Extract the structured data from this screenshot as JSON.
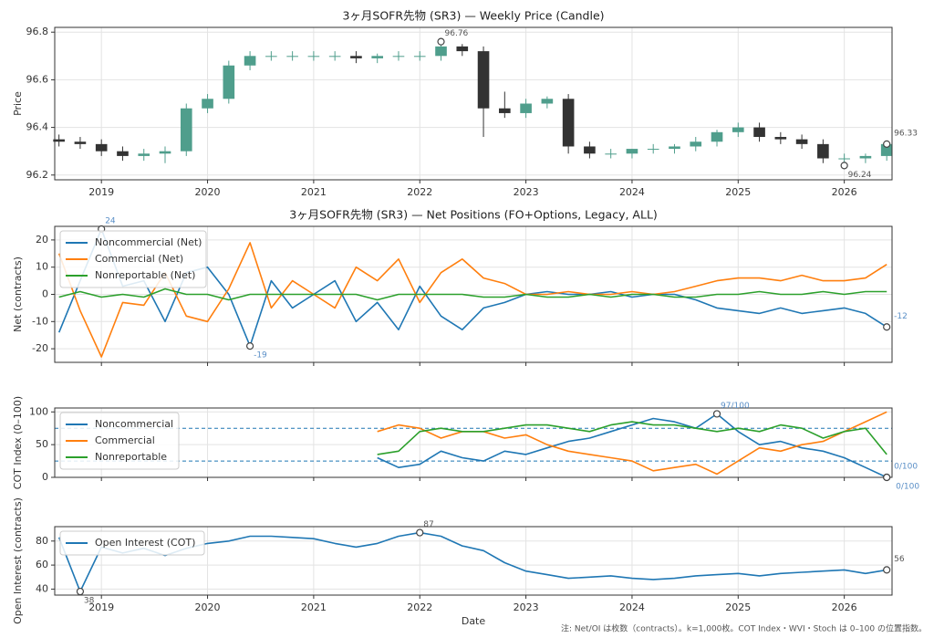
{
  "chart_data": [
    {
      "type": "candlestick",
      "title": "3ヶ月SOFR先物 (SR3) — Weekly Price (Candle)",
      "y_label": "Price",
      "x": [
        2018.6,
        2018.8,
        2019.0,
        2019.2,
        2019.4,
        2019.6,
        2019.8,
        2020.0,
        2020.2,
        2020.4,
        2020.6,
        2020.8,
        2021.0,
        2021.2,
        2021.4,
        2021.6,
        2021.8,
        2022.0,
        2022.2,
        2022.4,
        2022.6,
        2022.8,
        2023.0,
        2023.2,
        2023.4,
        2023.6,
        2023.8,
        2024.0,
        2024.2,
        2024.4,
        2024.6,
        2024.8,
        2025.0,
        2025.2,
        2025.4,
        2025.6,
        2025.8,
        2026.0,
        2026.2,
        2026.4
      ],
      "open": [
        96.35,
        96.34,
        96.33,
        96.3,
        96.28,
        96.29,
        96.3,
        96.48,
        96.52,
        96.66,
        96.7,
        96.7,
        96.7,
        96.7,
        96.7,
        96.69,
        96.7,
        96.7,
        96.7,
        96.74,
        96.72,
        96.48,
        96.46,
        96.5,
        96.52,
        96.32,
        96.29,
        96.29,
        96.31,
        96.31,
        96.32,
        96.34,
        96.38,
        96.4,
        96.36,
        96.35,
        96.33,
        96.27,
        96.27,
        96.28
      ],
      "high": [
        96.37,
        96.36,
        96.35,
        96.32,
        96.31,
        96.32,
        96.5,
        96.54,
        96.68,
        96.72,
        96.72,
        96.72,
        96.72,
        96.72,
        96.72,
        96.71,
        96.72,
        96.72,
        96.76,
        96.75,
        96.74,
        96.55,
        96.52,
        96.53,
        96.54,
        96.34,
        96.31,
        96.31,
        96.33,
        96.33,
        96.36,
        96.39,
        96.42,
        96.42,
        96.38,
        96.37,
        96.35,
        96.29,
        96.29,
        96.34
      ],
      "low": [
        96.32,
        96.31,
        96.28,
        96.26,
        96.26,
        96.25,
        96.28,
        96.46,
        96.5,
        96.64,
        96.68,
        96.68,
        96.68,
        96.68,
        96.67,
        96.67,
        96.68,
        96.68,
        96.68,
        96.7,
        96.36,
        96.44,
        96.44,
        96.48,
        96.29,
        96.27,
        96.27,
        96.27,
        96.29,
        96.29,
        96.3,
        96.32,
        96.36,
        96.34,
        96.33,
        96.31,
        96.25,
        96.24,
        96.25,
        96.26
      ],
      "close": [
        96.34,
        96.33,
        96.3,
        96.28,
        96.29,
        96.3,
        96.48,
        96.52,
        96.66,
        96.7,
        96.7,
        96.7,
        96.7,
        96.7,
        96.69,
        96.7,
        96.7,
        96.7,
        96.74,
        96.72,
        96.48,
        96.46,
        96.5,
        96.52,
        96.32,
        96.29,
        96.29,
        96.31,
        96.31,
        96.32,
        96.34,
        96.38,
        96.4,
        96.36,
        96.35,
        96.33,
        96.27,
        96.27,
        96.28,
        96.33
      ],
      "up_color": "#4f9e8c",
      "down_color": "#333333",
      "annotation_color": "#555555",
      "annotations": [
        {
          "x": 2022.2,
          "value": 96.76,
          "label": "96.76"
        },
        {
          "x": 2026.0,
          "value": 96.24,
          "label": "96.24"
        },
        {
          "x": 2026.4,
          "value": 96.33,
          "label": "96.33"
        }
      ],
      "xlim": [
        2018.56,
        2026.45
      ],
      "xticks": [
        2019,
        2020,
        2021,
        2022,
        2023,
        2024,
        2025,
        2026
      ],
      "show_xtick_labels": true,
      "ylim": [
        96.18,
        96.82
      ],
      "yticks": [
        96.2,
        96.4,
        96.6,
        96.8
      ],
      "grid": true
    },
    {
      "type": "line",
      "title": "3ヶ月SOFR先物 (SR3) — Net Positions (FO+Options, Legacy, ALL)",
      "y_label": "Net (contracts)",
      "x": [
        2018.6,
        2018.8,
        2019.0,
        2019.2,
        2019.4,
        2019.6,
        2019.8,
        2020.0,
        2020.2,
        2020.4,
        2020.6,
        2020.8,
        2021.0,
        2021.2,
        2021.4,
        2021.6,
        2021.8,
        2022.0,
        2022.2,
        2022.4,
        2022.6,
        2022.8,
        2023.0,
        2023.2,
        2023.4,
        2023.6,
        2023.8,
        2024.0,
        2024.2,
        2024.4,
        2024.6,
        2024.8,
        2025.0,
        2025.2,
        2025.4,
        2025.6,
        2025.8,
        2026.0,
        2026.2,
        2026.4
      ],
      "series": [
        {
          "name": "Noncommercial (Net)",
          "color": "#1f77b4",
          "values": [
            -14,
            5,
            24,
            3,
            5,
            -10,
            8,
            10,
            0,
            -19,
            5,
            -5,
            0,
            5,
            -10,
            -3,
            -13,
            3,
            -8,
            -13,
            -5,
            -3,
            0,
            1,
            0,
            0,
            1,
            -1,
            0,
            0,
            -2,
            -5,
            -6,
            -7,
            -5,
            -7,
            -6,
            -5,
            -7,
            -12
          ]
        },
        {
          "name": "Commercial (Net)",
          "color": "#ff7f0e",
          "values": [
            15,
            -6,
            -23,
            -3,
            -4,
            8,
            -8,
            -10,
            2,
            19,
            -5,
            5,
            0,
            -5,
            10,
            5,
            13,
            -3,
            8,
            13,
            6,
            4,
            0,
            0,
            1,
            0,
            0,
            1,
            0,
            1,
            3,
            5,
            6,
            6,
            5,
            7,
            5,
            5,
            6,
            11
          ]
        },
        {
          "name": "Nonreportable (Net)",
          "color": "#2ca02c",
          "values": [
            -1,
            1,
            -1,
            0,
            -1,
            2,
            0,
            0,
            -2,
            0,
            0,
            0,
            0,
            0,
            0,
            -2,
            0,
            0,
            0,
            0,
            -1,
            -1,
            0,
            -1,
            -1,
            0,
            -1,
            0,
            0,
            -1,
            -1,
            0,
            0,
            1,
            0,
            0,
            1,
            0,
            1,
            1
          ]
        }
      ],
      "annotation_color": "#5a8fc7",
      "annotations": [
        {
          "x": 2019.0,
          "value": 24,
          "label": "24"
        },
        {
          "x": 2020.4,
          "value": -19,
          "label": "-19"
        },
        {
          "x": 2026.4,
          "value": -12,
          "label": "-12"
        }
      ],
      "legend": "upper left",
      "xlim": [
        2018.56,
        2026.45
      ],
      "xticks": [
        2019,
        2020,
        2021,
        2022,
        2023,
        2024,
        2025,
        2026
      ],
      "show_xtick_labels": false,
      "ylim": [
        -25,
        25
      ],
      "yticks": [
        -20,
        -10,
        0,
        10,
        20
      ],
      "grid": true
    },
    {
      "type": "line",
      "y_label": "COT Index (0–100)",
      "x": [
        2018.6,
        2018.8,
        2019.0,
        2019.2,
        2019.4,
        2019.6,
        2019.8,
        2020.0,
        2020.2,
        2020.4,
        2020.6,
        2020.8,
        2021.0,
        2021.2,
        2021.4,
        2021.6,
        2021.8,
        2022.0,
        2022.2,
        2022.4,
        2022.6,
        2022.8,
        2023.0,
        2023.2,
        2023.4,
        2023.6,
        2023.8,
        2024.0,
        2024.2,
        2024.4,
        2024.6,
        2024.8,
        2025.0,
        2025.2,
        2025.4,
        2025.6,
        2025.8,
        2026.0,
        2026.2,
        2026.4
      ],
      "series": [
        {
          "name": "Noncommercial",
          "color": "#1f77b4",
          "values": [
            null,
            null,
            null,
            null,
            null,
            null,
            null,
            null,
            null,
            null,
            null,
            null,
            null,
            null,
            null,
            30,
            15,
            20,
            40,
            30,
            25,
            40,
            35,
            45,
            55,
            60,
            70,
            80,
            90,
            85,
            75,
            97,
            70,
            50,
            55,
            45,
            40,
            30,
            15,
            0
          ]
        },
        {
          "name": "Commercial",
          "color": "#ff7f0e",
          "values": [
            null,
            null,
            null,
            null,
            null,
            null,
            null,
            null,
            null,
            null,
            null,
            null,
            null,
            null,
            null,
            70,
            80,
            75,
            60,
            70,
            70,
            60,
            65,
            50,
            40,
            35,
            30,
            25,
            10,
            15,
            20,
            5,
            25,
            45,
            40,
            50,
            55,
            70,
            85,
            100
          ]
        },
        {
          "name": "Nonreportable",
          "color": "#2ca02c",
          "values": [
            null,
            null,
            null,
            null,
            null,
            null,
            null,
            null,
            null,
            null,
            null,
            null,
            null,
            null,
            null,
            35,
            40,
            70,
            75,
            70,
            70,
            75,
            80,
            80,
            75,
            70,
            80,
            85,
            80,
            80,
            75,
            70,
            75,
            70,
            80,
            75,
            60,
            70,
            75,
            35
          ]
        }
      ],
      "hlines": [
        25,
        75
      ],
      "hline_color": "#1f77b4",
      "annotation_color": "#5a8fc7",
      "annotations": [
        {
          "x": 2024.8,
          "value": 97,
          "label": "97/100"
        },
        {
          "x": 2026.4,
          "value": 0,
          "label": "0/100"
        },
        {
          "x": 2026.4,
          "value": 0,
          "label": "0/100"
        }
      ],
      "legend": "upper left",
      "xlim": [
        2018.56,
        2026.45
      ],
      "xticks": [
        2019,
        2020,
        2021,
        2022,
        2023,
        2024,
        2025,
        2026
      ],
      "show_xtick_labels": false,
      "ylim": [
        0,
        106
      ],
      "yticks": [
        0,
        50,
        100
      ],
      "grid": true
    },
    {
      "type": "line",
      "y_label": "Open Interest (contracts)",
      "x_label": "Date",
      "x": [
        2018.6,
        2018.8,
        2019.0,
        2019.2,
        2019.4,
        2019.6,
        2019.8,
        2020.0,
        2020.2,
        2020.4,
        2020.6,
        2020.8,
        2021.0,
        2021.2,
        2021.4,
        2021.6,
        2021.8,
        2022.0,
        2022.2,
        2022.4,
        2022.6,
        2022.8,
        2023.0,
        2023.2,
        2023.4,
        2023.6,
        2023.8,
        2024.0,
        2024.2,
        2024.4,
        2024.6,
        2024.8,
        2025.0,
        2025.2,
        2025.4,
        2025.6,
        2025.8,
        2026.0,
        2026.2,
        2026.4
      ],
      "series": [
        {
          "name": "Open Interest (COT)",
          "color": "#1f77b4",
          "values": [
            83,
            38,
            75,
            70,
            74,
            68,
            74,
            78,
            80,
            84,
            84,
            83,
            82,
            78,
            75,
            78,
            84,
            87,
            84,
            76,
            72,
            62,
            55,
            52,
            49,
            50,
            51,
            49,
            48,
            49,
            51,
            52,
            53,
            51,
            53,
            54,
            55,
            56,
            53,
            56
          ]
        }
      ],
      "annotation_color": "#555555",
      "annotations": [
        {
          "x": 2022.0,
          "value": 87,
          "label": "87"
        },
        {
          "x": 2018.8,
          "value": 38,
          "label": "38"
        },
        {
          "x": 2026.4,
          "value": 56,
          "label": "56"
        }
      ],
      "legend": "upper left",
      "xlim": [
        2018.56,
        2026.45
      ],
      "xticks": [
        2019,
        2020,
        2021,
        2022,
        2023,
        2024,
        2025,
        2026
      ],
      "show_xtick_labels": true,
      "ylim": [
        35,
        92
      ],
      "yticks": [
        40,
        60,
        80
      ],
      "grid": true
    }
  ],
  "footnote": "注: Net/OI は枚数（contracts）。k=1,000枚。COT Index・WVI・Stoch は 0–100 の位置指数。"
}
